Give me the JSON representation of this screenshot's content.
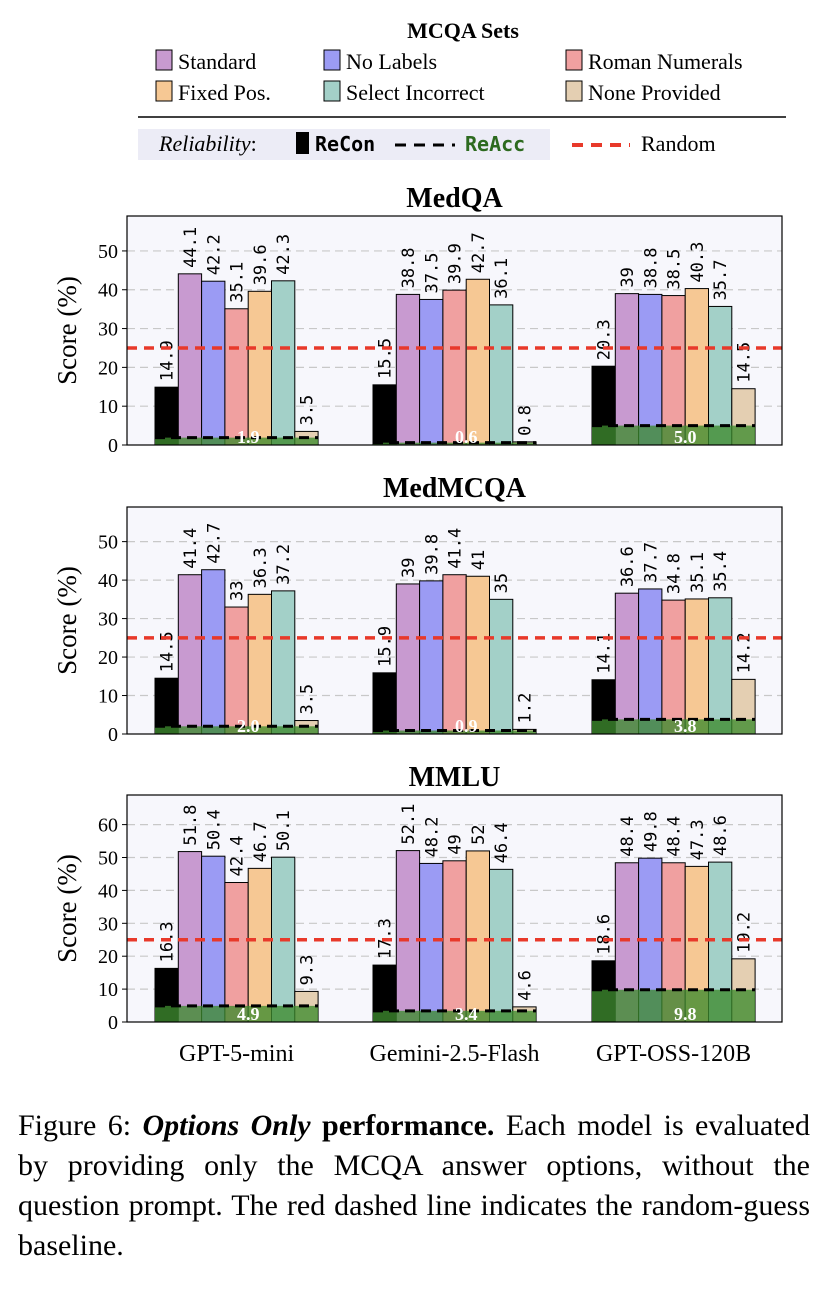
{
  "legend": {
    "title": "MCQA Sets",
    "sets": [
      {
        "label": "Standard",
        "color": "#c89ad0"
      },
      {
        "label": "No Labels",
        "color": "#9b9bf4"
      },
      {
        "label": "Roman Numerals",
        "color": "#f0a0a0"
      },
      {
        "label": "Fixed Pos.",
        "color": "#f6c894"
      },
      {
        "label": "Select Incorrect",
        "color": "#a3d0c8"
      },
      {
        "label": "None Provided",
        "color": "#e4cfb2"
      }
    ],
    "reliability_label": "Reliability",
    "recon_label": "ReCon",
    "reacc_label": "ReAcc",
    "random_label": "Random"
  },
  "colors": {
    "recon": "#000000",
    "reacc_fill": "#3d8a2e",
    "reacc_text": "#2d6a1f",
    "random": "#e8392a",
    "panel_bg": "#f7f7fc",
    "grid": "#c8c8c8"
  },
  "chart_data": [
    {
      "type": "bar",
      "title": "MedQA",
      "ylabel": "Score (%)",
      "ylim": [
        0,
        59
      ],
      "yticks": [
        0,
        10,
        20,
        30,
        40,
        50
      ],
      "random_baseline": 25,
      "categories": [
        "GPT-5-mini",
        "Gemini-2.5-Flash",
        "GPT-OSS-120B"
      ],
      "recon": [
        14.9,
        15.5,
        20.3
      ],
      "reacc": [
        1.9,
        0.6,
        5.0
      ],
      "reacc_labels": [
        "1.9",
        "0.6",
        "5.0"
      ],
      "series": [
        {
          "name": "Standard",
          "values": [
            44.1,
            38.8,
            39
          ],
          "labels": [
            "44.1",
            "38.8",
            "39"
          ]
        },
        {
          "name": "No Labels",
          "values": [
            42.2,
            37.5,
            38.8
          ],
          "labels": [
            "42.2",
            "37.5",
            "38.8"
          ]
        },
        {
          "name": "Roman Numerals",
          "values": [
            35.1,
            39.9,
            38.5
          ],
          "labels": [
            "35.1",
            "39.9",
            "38.5"
          ]
        },
        {
          "name": "Fixed Pos.",
          "values": [
            39.6,
            42.7,
            40.3
          ],
          "labels": [
            "39.6",
            "42.7",
            "40.3"
          ]
        },
        {
          "name": "Select Incorrect",
          "values": [
            42.3,
            36.1,
            35.7
          ],
          "labels": [
            "42.3",
            "36.1",
            "35.7"
          ]
        },
        {
          "name": "None Provided",
          "values": [
            3.5,
            0.8,
            14.5
          ],
          "labels": [
            "3.5",
            "0.8",
            "14.5"
          ]
        }
      ],
      "recon_labels": [
        "14.9",
        "15.5",
        "20.3"
      ]
    },
    {
      "type": "bar",
      "title": "MedMCQA",
      "ylabel": "Score (%)",
      "ylim": [
        0,
        59
      ],
      "yticks": [
        0,
        10,
        20,
        30,
        40,
        50
      ],
      "random_baseline": 25,
      "categories": [
        "GPT-5-mini",
        "Gemini-2.5-Flash",
        "GPT-OSS-120B"
      ],
      "recon": [
        14.5,
        15.9,
        14.1
      ],
      "reacc": [
        2.0,
        0.9,
        3.8
      ],
      "reacc_labels": [
        "2.0",
        "0.9",
        "3.8"
      ],
      "series": [
        {
          "name": "Standard",
          "values": [
            41.4,
            39,
            36.6
          ],
          "labels": [
            "41.4",
            "39",
            "36.6"
          ]
        },
        {
          "name": "No Labels",
          "values": [
            42.7,
            39.8,
            37.7
          ],
          "labels": [
            "42.7",
            "39.8",
            "37.7"
          ]
        },
        {
          "name": "Roman Numerals",
          "values": [
            33,
            41.4,
            34.8
          ],
          "labels": [
            "33",
            "41.4",
            "34.8"
          ]
        },
        {
          "name": "Fixed Pos.",
          "values": [
            36.3,
            41,
            35.1
          ],
          "labels": [
            "36.3",
            "41",
            "35.1"
          ]
        },
        {
          "name": "Select Incorrect",
          "values": [
            37.2,
            35,
            35.4
          ],
          "labels": [
            "37.2",
            "35",
            "35.4"
          ]
        },
        {
          "name": "None Provided",
          "values": [
            3.5,
            1.2,
            14.2
          ],
          "labels": [
            "3.5",
            "1.2",
            "14.2"
          ]
        }
      ],
      "recon_labels": [
        "14.5",
        "15.9",
        "14.1"
      ]
    },
    {
      "type": "bar",
      "title": "MMLU",
      "ylabel": "Score (%)",
      "ylim": [
        0,
        69
      ],
      "yticks": [
        0,
        10,
        20,
        30,
        40,
        50,
        60
      ],
      "random_baseline": 25,
      "categories": [
        "GPT-5-mini",
        "Gemini-2.5-Flash",
        "GPT-OSS-120B"
      ],
      "recon": [
        16.3,
        17.3,
        18.6
      ],
      "reacc": [
        4.9,
        3.4,
        9.8
      ],
      "reacc_labels": [
        "4.9",
        "3.4",
        "9.8"
      ],
      "series": [
        {
          "name": "Standard",
          "values": [
            51.8,
            52.1,
            48.4
          ],
          "labels": [
            "51.8",
            "52.1",
            "48.4"
          ]
        },
        {
          "name": "No Labels",
          "values": [
            50.4,
            48.2,
            49.8
          ],
          "labels": [
            "50.4",
            "48.2",
            "49.8"
          ]
        },
        {
          "name": "Roman Numerals",
          "values": [
            42.4,
            49,
            48.4
          ],
          "labels": [
            "42.4",
            "49",
            "48.4"
          ]
        },
        {
          "name": "Fixed Pos.",
          "values": [
            46.7,
            52,
            47.3
          ],
          "labels": [
            "46.7",
            "52",
            "47.3"
          ]
        },
        {
          "name": "Select Incorrect",
          "values": [
            50.1,
            46.4,
            48.6
          ],
          "labels": [
            "50.1",
            "46.4",
            "48.6"
          ]
        },
        {
          "name": "None Provided",
          "values": [
            9.3,
            4.6,
            19.2
          ],
          "labels": [
            "9.3",
            "4.6",
            "19.2"
          ]
        }
      ],
      "recon_labels": [
        "16.3",
        "17.3",
        "18.6"
      ]
    }
  ],
  "caption": {
    "prefix": "Figure 6: ",
    "emph": "Options Only",
    "bold": " performance.",
    "body": " Each model is evaluated by providing only the MCQA answer options, without the question prompt. The red dashed line indicates the random-guess baseline."
  }
}
